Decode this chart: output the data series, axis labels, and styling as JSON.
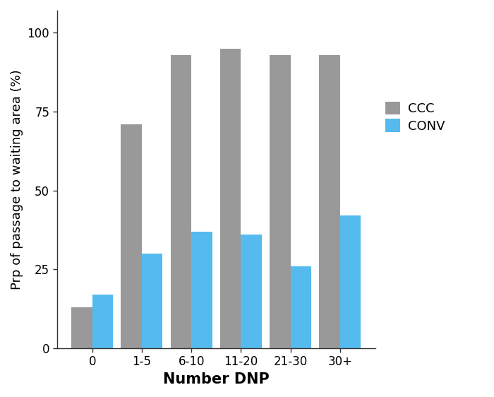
{
  "categories": [
    "0",
    "1-5",
    "6-10",
    "11-20",
    "21-30",
    "30+"
  ],
  "ccc_values": [
    13,
    71,
    93,
    95,
    93,
    93
  ],
  "conv_values": [
    17,
    30,
    37,
    36,
    26,
    42
  ],
  "ccc_color": "#999999",
  "conv_color": "#55BBEE",
  "xlabel": "Number DNP",
  "ylabel": "Prp of passage to waiting area (%)",
  "ylim": [
    0,
    107
  ],
  "yticks": [
    0,
    25,
    50,
    75,
    100
  ],
  "legend_labels": [
    "CCC",
    "CONV"
  ],
  "bar_width": 0.42,
  "xlabel_fontsize": 15,
  "ylabel_fontsize": 13,
  "tick_fontsize": 12,
  "legend_fontsize": 13,
  "background_color": "#ffffff"
}
